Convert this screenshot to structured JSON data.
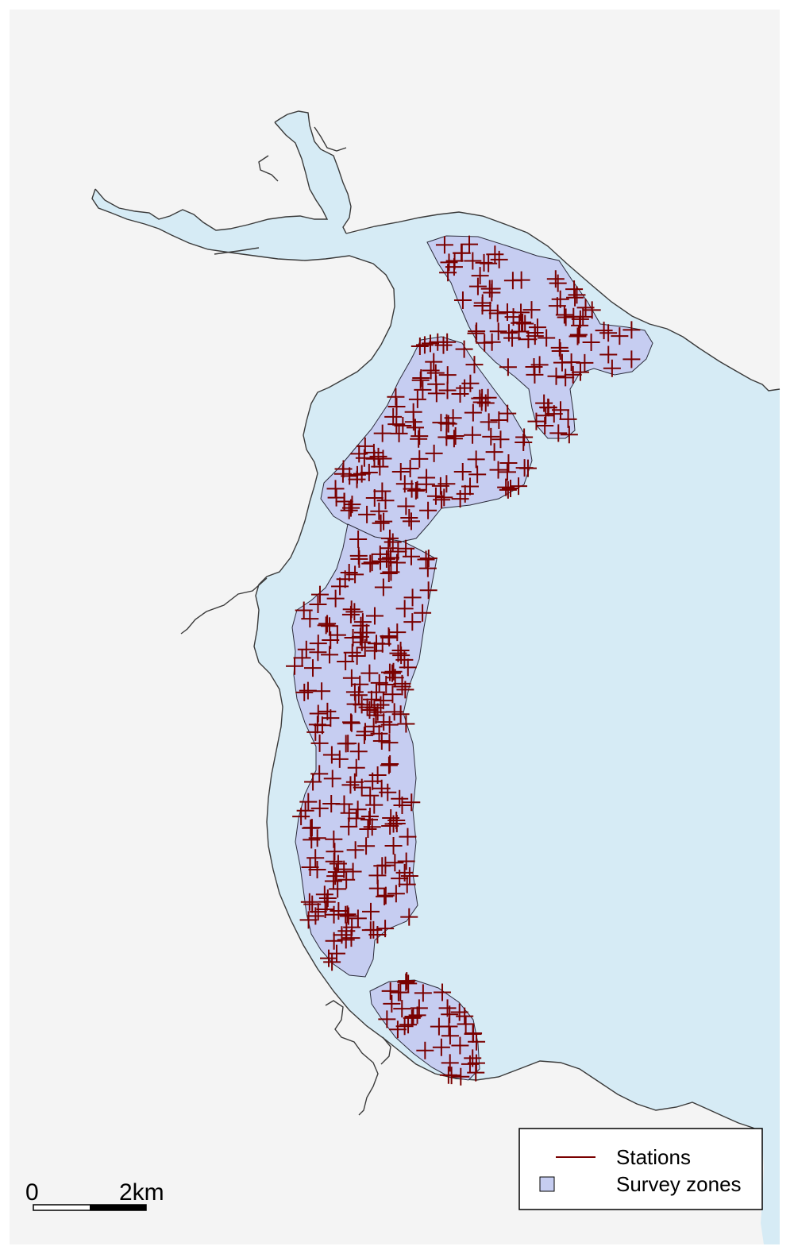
{
  "colors": {
    "land": "#f4f4f4",
    "sea": "#d6ebf5",
    "coastline": "#3a3a3a",
    "zone_fill": "#c6cdf1",
    "zone_stroke": "#2b2b3a",
    "station": "#7a0000",
    "scale_bar": "#000000"
  },
  "legend": {
    "stations_label": "Stations",
    "zones_label": "Survey zones"
  },
  "scale_bar": {
    "start_label": "0",
    "end_label": "2km"
  },
  "survey_zones": [
    "north-east zone",
    "north-central zone",
    "long western zone",
    "southern zone"
  ]
}
